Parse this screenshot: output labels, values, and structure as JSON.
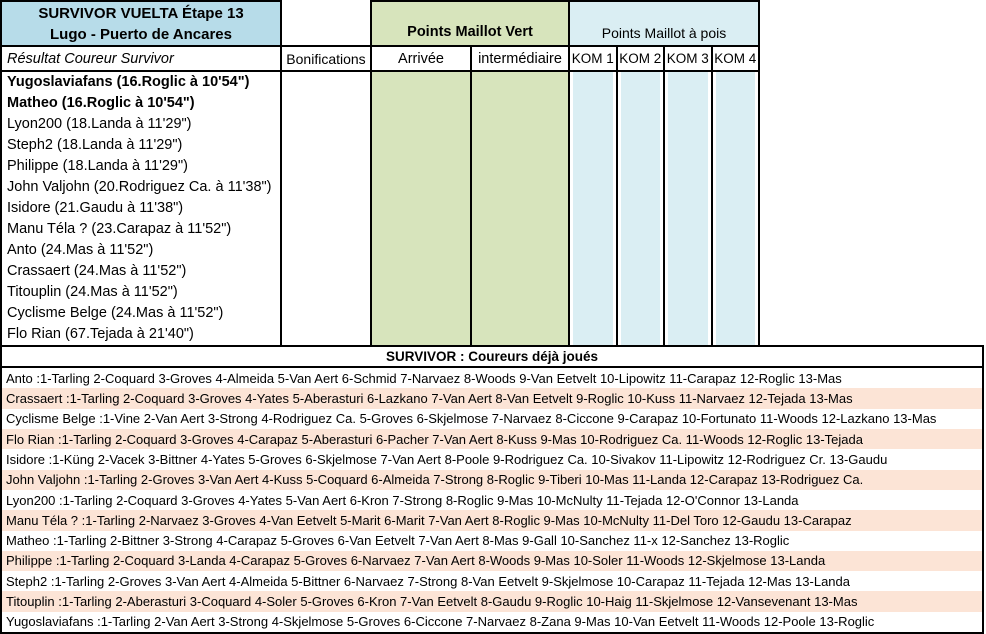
{
  "header": {
    "title_line1": "SURVIVOR VUELTA Étape 13",
    "title_line2": "Lugo - Puerto de Ancares",
    "result_col": "Résultat  Coureur Survivor",
    "bonifications": "Bonifications",
    "green_group": "Points Maillot Vert",
    "polka_group": "Points Maillot à pois",
    "arrivee": "Arrivée",
    "intermediaire": "intermédiaire",
    "kom_cols": [
      "KOM 1",
      "KOM 2",
      "KOM 3",
      "KOM 4"
    ]
  },
  "standings": [
    {
      "text": "Yugoslaviafans (16.Roglic à 10'54\")",
      "bold": true
    },
    {
      "text": "Matheo (16.Roglic à 10'54\")",
      "bold": true
    },
    {
      "text": "Lyon200 (18.Landa à 11'29\")",
      "bold": false
    },
    {
      "text": "Steph2 (18.Landa à 11'29\")",
      "bold": false
    },
    {
      "text": "Philippe (18.Landa à 11'29\")",
      "bold": false
    },
    {
      "text": "John Valjohn (20.Rodriguez Ca. à 11'38\")",
      "bold": false
    },
    {
      "text": "Isidore (21.Gaudu à 11'38\")",
      "bold": false
    },
    {
      "text": "Manu Téla ? (23.Carapaz à 11'52\")",
      "bold": false
    },
    {
      "text": "Anto (24.Mas à 11'52\")",
      "bold": false
    },
    {
      "text": "Crassaert (24.Mas à 11'52\")",
      "bold": false
    },
    {
      "text": "Titouplin (24.Mas à 11'52\")",
      "bold": false
    },
    {
      "text": "Cyclisme Belge (24.Mas à 11'52\")",
      "bold": false
    },
    {
      "text": "Flo Rian (67.Tejada à 21'40\")",
      "bold": false
    }
  ],
  "played_section": {
    "title": "SURVIVOR : Coureurs déjà joués",
    "separator": " : ",
    "rows": [
      {
        "player": "Anto",
        "picks": "1-Tarling 2-Coquard 3-Groves 4-Almeida 5-Van Aert 6-Schmid 7-Narvaez 8-Woods 9-Van Eetvelt 10-Lipowitz 11-Carapaz 12-Roglic 13-Mas"
      },
      {
        "player": "Crassaert",
        "picks": "1-Tarling 2-Coquard 3-Groves 4-Yates 5-Aberasturi 6-Lazkano 7-Van Aert 8-Van Eetvelt 9-Roglic 10-Kuss 11-Narvaez 12-Tejada 13-Mas"
      },
      {
        "player": "Cyclisme Belge",
        "picks": "1-Vine 2-Van Aert 3-Strong 4-Rodriguez Ca. 5-Groves 6-Skjelmose 7-Narvaez 8-Ciccone 9-Carapaz 10-Fortunato 11-Woods 12-Lazkano 13-Mas"
      },
      {
        "player": "Flo Rian",
        "picks": "1-Tarling 2-Coquard 3-Groves 4-Carapaz 5-Aberasturi 6-Pacher 7-Van Aert 8-Kuss 9-Mas 10-Rodriguez Ca. 11-Woods 12-Roglic 13-Tejada"
      },
      {
        "player": "Isidore",
        "picks": "1-Küng 2-Vacek 3-Bittner 4-Yates 5-Groves 6-Skjelmose 7-Van Aert 8-Poole 9-Rodriguez Ca. 10-Sivakov 11-Lipowitz 12-Rodriguez Cr. 13-Gaudu"
      },
      {
        "player": "John Valjohn",
        "picks": "1-Tarling 2-Groves 3-Van Aert 4-Kuss 5-Coquard 6-Almeida 7-Strong 8-Roglic 9-Tiberi 10-Mas 11-Landa 12-Carapaz 13-Rodriguez Ca."
      },
      {
        "player": "Lyon200",
        "picks": "1-Tarling 2-Coquard 3-Groves 4-Yates 5-Van Aert 6-Kron 7-Strong 8-Roglic 9-Mas 10-McNulty 11-Tejada 12-O'Connor 13-Landa"
      },
      {
        "player": "Manu Téla ?",
        "picks": "1-Tarling 2-Narvaez 3-Groves 4-Van Eetvelt 5-Marit 6-Marit 7-Van Aert 8-Roglic 9-Mas 10-McNulty 11-Del Toro 12-Gaudu 13-Carapaz"
      },
      {
        "player": "Matheo",
        "picks": "1-Tarling 2-Bittner 3-Strong 4-Carapaz 5-Groves 6-Van Eetvelt 7-Van Aert 8-Mas 9-Gall 10-Sanchez 11-x 12-Sanchez 13-Roglic"
      },
      {
        "player": "Philippe",
        "picks": "1-Tarling 2-Coquard 3-Landa 4-Carapaz 5-Groves 6-Narvaez 7-Van Aert 8-Woods 9-Mas 10-Soler 11-Woods 12-Skjelmose 13-Landa"
      },
      {
        "player": "Steph2",
        "picks": "1-Tarling 2-Groves 3-Van Aert 4-Almeida 5-Bittner 6-Narvaez 7-Strong 8-Van Eetvelt 9-Skjelmose 10-Carapaz 11-Tejada 12-Mas 13-Landa"
      },
      {
        "player": "Titouplin",
        "picks": "1-Tarling 2-Aberasturi 3-Coquard 4-Soler 5-Groves 6-Kron 7-Van Eetvelt 8-Gaudu 9-Roglic 10-Haig 11-Skjelmose 12-Vansevenant 13-Mas"
      },
      {
        "player": "Yugoslaviafans",
        "picks": "1-Tarling 2-Van Aert 3-Strong 4-Skjelmose 5-Groves 6-Ciccone 7-Narvaez 8-Zana 9-Mas 10-Van Eetvelt 11-Woods 12-Poole 13-Roglic"
      }
    ]
  },
  "colors": {
    "title_blue": "#B7DCE9",
    "green": "#D7E4BC",
    "polka_blue": "#DAEEF3",
    "peach": "#FCE4D6",
    "border": "#000000",
    "text": "#000000"
  }
}
